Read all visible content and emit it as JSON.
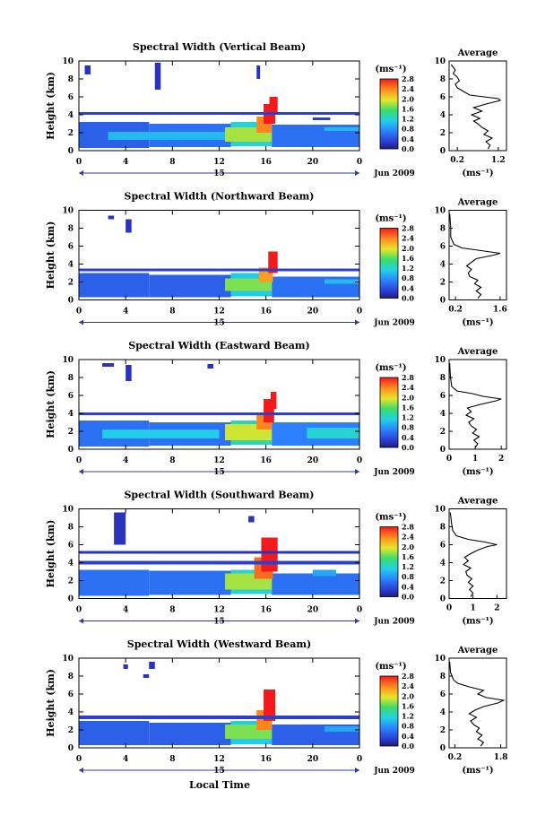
{
  "figure": {
    "ylabel": "Height (km)",
    "xlabel": "Local Time",
    "date_label": "Jun 2009",
    "day_label": "15",
    "units_label": "(ms⁻¹)",
    "profile_title": "Average",
    "profile_xlabel": "(ms⁻¹)"
  },
  "chart_data": [
    {
      "type": "heatmap",
      "title": "Spectral Width (Vertical Beam)",
      "x_ticks": [
        "0",
        "4",
        "8",
        "12",
        "16",
        "20",
        "0"
      ],
      "y_ticks": [
        "0",
        "2",
        "4",
        "6",
        "8",
        "10"
      ],
      "xlim": [
        0,
        24
      ],
      "ylim": [
        0,
        10
      ],
      "colorbar": {
        "ticks": [
          "2.8",
          "2.4",
          "2.0",
          "1.6",
          "1.2",
          "0.8",
          "0.4",
          "0.0"
        ],
        "range": [
          0,
          2.8
        ]
      },
      "cells": [
        {
          "t0": 0,
          "t1": 6,
          "h0": 0.3,
          "h1": 3.2,
          "v": 0.5
        },
        {
          "t0": 6,
          "t1": 13,
          "h0": 0.4,
          "h1": 3.0,
          "v": 0.6
        },
        {
          "t0": 13,
          "t1": 16.5,
          "h0": 0.5,
          "h1": 3.2,
          "v": 1.2
        },
        {
          "t0": 16.5,
          "t1": 24,
          "h0": 0.4,
          "h1": 2.9,
          "v": 0.6
        },
        {
          "t0": 2.5,
          "t1": 13,
          "h0": 1.2,
          "h1": 2.1,
          "v": 1.0
        },
        {
          "t0": 12.5,
          "t1": 16.5,
          "h0": 1.0,
          "h1": 2.6,
          "v": 1.8
        },
        {
          "t0": 15.2,
          "t1": 16.5,
          "h0": 2.0,
          "h1": 3.8,
          "v": 2.4
        },
        {
          "t0": 15.8,
          "t1": 16.8,
          "h0": 3.0,
          "h1": 5.2,
          "v": 2.8
        },
        {
          "t0": 16.3,
          "t1": 17.0,
          "h0": 4.2,
          "h1": 6.0,
          "v": 2.8
        },
        {
          "t0": 0,
          "t1": 24,
          "h0": 4.0,
          "h1": 4.3,
          "v": 0.3
        },
        {
          "t0": 0.5,
          "t1": 1.0,
          "h0": 8.5,
          "h1": 9.5,
          "v": 0.2
        },
        {
          "t0": 6.5,
          "t1": 7.0,
          "h0": 6.8,
          "h1": 9.8,
          "v": 0.2
        },
        {
          "t0": 15.2,
          "t1": 15.5,
          "h0": 8.0,
          "h1": 9.5,
          "v": 0.2
        },
        {
          "t0": 20,
          "t1": 21.5,
          "h0": 3.4,
          "h1": 3.7,
          "v": 0.3
        },
        {
          "t0": 21,
          "t1": 24,
          "h0": 2.2,
          "h1": 2.6,
          "v": 1.0
        }
      ],
      "profile": {
        "x_ticks": [
          "0.2",
          "1.2"
        ],
        "xlim": [
          0,
          1.4
        ],
        "ylim": [
          0,
          10
        ],
        "points": [
          [
            0.95,
            0.2
          ],
          [
            1.0,
            0.6
          ],
          [
            0.9,
            1.0
          ],
          [
            1.05,
            1.4
          ],
          [
            0.85,
            1.8
          ],
          [
            0.95,
            2.2
          ],
          [
            0.8,
            2.6
          ],
          [
            0.7,
            3.0
          ],
          [
            0.6,
            3.3
          ],
          [
            0.75,
            3.6
          ],
          [
            0.55,
            4.0
          ],
          [
            0.8,
            4.4
          ],
          [
            0.6,
            4.8
          ],
          [
            0.9,
            5.2
          ],
          [
            1.25,
            5.6
          ],
          [
            1.2,
            5.8
          ],
          [
            0.5,
            6.2
          ],
          [
            0.35,
            6.6
          ],
          [
            0.2,
            7.0
          ],
          [
            0.15,
            7.4
          ],
          [
            0.25,
            7.8
          ],
          [
            0.2,
            8.2
          ],
          [
            0.1,
            8.6
          ],
          [
            0.15,
            9.0
          ],
          [
            0.05,
            9.6
          ]
        ]
      }
    },
    {
      "type": "heatmap",
      "title": "Spectral Width (Northward Beam)",
      "x_ticks": [
        "0",
        "4",
        "8",
        "12",
        "16",
        "20",
        "0"
      ],
      "y_ticks": [
        "0",
        "2",
        "4",
        "6",
        "8",
        "10"
      ],
      "xlim": [
        0,
        24
      ],
      "ylim": [
        0,
        10
      ],
      "colorbar": {
        "ticks": [
          "2.8",
          "2.4",
          "2.0",
          "1.6",
          "1.2",
          "0.8",
          "0.4",
          "0.0"
        ],
        "range": [
          0,
          2.8
        ]
      },
      "cells": [
        {
          "t0": 0,
          "t1": 6,
          "h0": 0.3,
          "h1": 3.0,
          "v": 0.5
        },
        {
          "t0": 6,
          "t1": 13,
          "h0": 0.3,
          "h1": 2.8,
          "v": 0.5
        },
        {
          "t0": 13,
          "t1": 16.5,
          "h0": 0.4,
          "h1": 3.0,
          "v": 1.1
        },
        {
          "t0": 16.5,
          "t1": 24,
          "h0": 0.3,
          "h1": 2.6,
          "v": 0.6
        },
        {
          "t0": 12.5,
          "t1": 16.5,
          "h0": 1.0,
          "h1": 2.4,
          "v": 1.7
        },
        {
          "t0": 15.4,
          "t1": 16.6,
          "h0": 2.0,
          "h1": 3.6,
          "v": 2.3
        },
        {
          "t0": 16.2,
          "t1": 17.0,
          "h0": 3.0,
          "h1": 5.4,
          "v": 2.8
        },
        {
          "t0": 0,
          "t1": 24,
          "h0": 3.2,
          "h1": 3.5,
          "v": 0.3
        },
        {
          "t0": 4,
          "t1": 4.5,
          "h0": 7.5,
          "h1": 9.0,
          "v": 0.2
        },
        {
          "t0": 2.5,
          "t1": 3.0,
          "h0": 9.0,
          "h1": 9.4,
          "v": 0.2
        },
        {
          "t0": 21,
          "t1": 24,
          "h0": 1.8,
          "h1": 2.3,
          "v": 1.0
        }
      ],
      "profile": {
        "x_ticks": [
          "0.2",
          "1.6"
        ],
        "xlim": [
          0,
          1.8
        ],
        "ylim": [
          0,
          10
        ],
        "points": [
          [
            0.9,
            0.2
          ],
          [
            1.0,
            0.6
          ],
          [
            0.85,
            1.0
          ],
          [
            1.0,
            1.4
          ],
          [
            0.8,
            1.8
          ],
          [
            0.9,
            2.2
          ],
          [
            0.65,
            2.6
          ],
          [
            0.6,
            3.0
          ],
          [
            0.7,
            3.4
          ],
          [
            0.55,
            3.8
          ],
          [
            0.7,
            4.2
          ],
          [
            0.85,
            4.6
          ],
          [
            1.4,
            5.0
          ],
          [
            1.6,
            5.2
          ],
          [
            1.0,
            5.5
          ],
          [
            0.4,
            5.8
          ],
          [
            0.15,
            6.2
          ],
          [
            0.05,
            7.0
          ],
          [
            0.05,
            8.0
          ],
          [
            0.02,
            9.6
          ]
        ]
      }
    },
    {
      "type": "heatmap",
      "title": "Spectral Width (Eastward Beam)",
      "x_ticks": [
        "0",
        "4",
        "8",
        "12",
        "16",
        "20",
        "0"
      ],
      "y_ticks": [
        "0",
        "2",
        "4",
        "6",
        "8",
        "10"
      ],
      "xlim": [
        0,
        24
      ],
      "ylim": [
        0,
        10
      ],
      "colorbar": {
        "ticks": [
          "2.8",
          "2.4",
          "2.0",
          "1.6",
          "1.2",
          "0.8",
          "0.4",
          "0.0"
        ],
        "range": [
          0,
          2.8
        ]
      },
      "cells": [
        {
          "t0": 0,
          "t1": 6,
          "h0": 0.3,
          "h1": 3.2,
          "v": 0.6
        },
        {
          "t0": 6,
          "t1": 13,
          "h0": 0.4,
          "h1": 3.0,
          "v": 0.6
        },
        {
          "t0": 13,
          "t1": 16.5,
          "h0": 0.5,
          "h1": 3.2,
          "v": 1.3
        },
        {
          "t0": 16.5,
          "t1": 24,
          "h0": 0.4,
          "h1": 3.0,
          "v": 0.7
        },
        {
          "t0": 2.0,
          "t1": 12,
          "h0": 1.2,
          "h1": 2.2,
          "v": 1.1
        },
        {
          "t0": 12.5,
          "t1": 16.5,
          "h0": 1.0,
          "h1": 2.8,
          "v": 1.9
        },
        {
          "t0": 15.2,
          "t1": 16.5,
          "h0": 2.2,
          "h1": 4.0,
          "v": 2.4
        },
        {
          "t0": 15.8,
          "t1": 16.7,
          "h0": 3.0,
          "h1": 5.6,
          "v": 2.8
        },
        {
          "t0": 16.4,
          "t1": 16.9,
          "h0": 4.5,
          "h1": 6.4,
          "v": 2.8
        },
        {
          "t0": 0,
          "t1": 24,
          "h0": 3.8,
          "h1": 4.1,
          "v": 0.3
        },
        {
          "t0": 2.0,
          "t1": 3.0,
          "h0": 9.2,
          "h1": 9.6,
          "v": 0.2
        },
        {
          "t0": 4.0,
          "t1": 4.5,
          "h0": 7.6,
          "h1": 9.4,
          "v": 0.2
        },
        {
          "t0": 11.0,
          "t1": 11.5,
          "h0": 9.0,
          "h1": 9.5,
          "v": 0.2
        },
        {
          "t0": 19.5,
          "t1": 24,
          "h0": 1.2,
          "h1": 2.4,
          "v": 1.2
        }
      ],
      "profile": {
        "x_ticks": [
          "0",
          "1",
          "2"
        ],
        "xlim": [
          0,
          2.2
        ],
        "ylim": [
          0,
          10
        ],
        "points": [
          [
            1.0,
            0.2
          ],
          [
            1.1,
            0.6
          ],
          [
            0.95,
            1.0
          ],
          [
            1.15,
            1.4
          ],
          [
            0.9,
            1.8
          ],
          [
            1.05,
            2.2
          ],
          [
            0.85,
            2.6
          ],
          [
            0.75,
            3.0
          ],
          [
            0.95,
            3.4
          ],
          [
            0.65,
            3.8
          ],
          [
            0.85,
            4.2
          ],
          [
            0.7,
            4.6
          ],
          [
            1.2,
            5.0
          ],
          [
            1.8,
            5.4
          ],
          [
            2.0,
            5.6
          ],
          [
            1.3,
            5.9
          ],
          [
            0.9,
            6.2
          ],
          [
            0.3,
            6.5
          ],
          [
            0.1,
            7.0
          ],
          [
            0.05,
            8.0
          ],
          [
            0.02,
            9.6
          ]
        ]
      }
    },
    {
      "type": "heatmap",
      "title": "Spectral Width (Southward Beam)",
      "x_ticks": [
        "0",
        "4",
        "8",
        "12",
        "16",
        "20",
        "0"
      ],
      "y_ticks": [
        "0",
        "2",
        "4",
        "6",
        "8",
        "10"
      ],
      "xlim": [
        0,
        24
      ],
      "ylim": [
        0,
        10
      ],
      "colorbar": {
        "ticks": [
          "2.8",
          "2.4",
          "2.0",
          "1.6",
          "1.2",
          "0.8",
          "0.4",
          "0.0"
        ],
        "range": [
          0,
          2.8
        ]
      },
      "cells": [
        {
          "t0": 0,
          "t1": 6,
          "h0": 0.3,
          "h1": 3.2,
          "v": 0.6
        },
        {
          "t0": 6,
          "t1": 13,
          "h0": 0.4,
          "h1": 3.1,
          "v": 0.6
        },
        {
          "t0": 13,
          "t1": 16.5,
          "h0": 0.5,
          "h1": 3.2,
          "v": 1.2
        },
        {
          "t0": 16.5,
          "t1": 24,
          "h0": 0.4,
          "h1": 2.8,
          "v": 0.6
        },
        {
          "t0": 12.5,
          "t1": 16.5,
          "h0": 1.0,
          "h1": 2.8,
          "v": 1.8
        },
        {
          "t0": 15.0,
          "t1": 16.6,
          "h0": 2.2,
          "h1": 4.6,
          "v": 2.5
        },
        {
          "t0": 15.6,
          "t1": 17.0,
          "h0": 3.0,
          "h1": 6.8,
          "v": 2.8
        },
        {
          "t0": 0,
          "t1": 24,
          "h0": 3.8,
          "h1": 4.2,
          "v": 0.3
        },
        {
          "t0": 0,
          "t1": 24,
          "h0": 5.0,
          "h1": 5.3,
          "v": 0.2
        },
        {
          "t0": 3.0,
          "t1": 4.0,
          "h0": 6.0,
          "h1": 9.6,
          "v": 0.2
        },
        {
          "t0": 14.5,
          "t1": 15.0,
          "h0": 8.5,
          "h1": 9.2,
          "v": 0.2
        },
        {
          "t0": 20,
          "t1": 22,
          "h0": 2.5,
          "h1": 3.2,
          "v": 0.9
        }
      ],
      "profile": {
        "x_ticks": [
          "0",
          "1",
          "2"
        ],
        "xlim": [
          0,
          2.4
        ],
        "ylim": [
          0,
          10
        ],
        "points": [
          [
            0.9,
            0.2
          ],
          [
            1.0,
            0.6
          ],
          [
            0.85,
            1.0
          ],
          [
            1.0,
            1.4
          ],
          [
            0.8,
            1.8
          ],
          [
            0.95,
            2.2
          ],
          [
            0.75,
            2.6
          ],
          [
            0.7,
            3.0
          ],
          [
            0.9,
            3.4
          ],
          [
            0.6,
            3.8
          ],
          [
            0.8,
            4.2
          ],
          [
            0.65,
            4.6
          ],
          [
            0.9,
            5.0
          ],
          [
            1.2,
            5.4
          ],
          [
            1.6,
            5.8
          ],
          [
            2.0,
            6.0
          ],
          [
            1.5,
            6.3
          ],
          [
            0.8,
            6.6
          ],
          [
            0.3,
            7.0
          ],
          [
            0.15,
            7.6
          ],
          [
            0.1,
            8.4
          ],
          [
            0.05,
            9.6
          ]
        ]
      }
    },
    {
      "type": "heatmap",
      "title": "Spectral Width (Westward Beam)",
      "x_ticks": [
        "0",
        "4",
        "8",
        "12",
        "16",
        "20",
        "0"
      ],
      "y_ticks": [
        "0",
        "2",
        "4",
        "6",
        "8",
        "10"
      ],
      "xlim": [
        0,
        24
      ],
      "ylim": [
        0,
        10
      ],
      "colorbar": {
        "ticks": [
          "2.8",
          "2.4",
          "2.0",
          "1.6",
          "1.2",
          "0.8",
          "0.4",
          "0.0"
        ],
        "range": [
          0,
          2.8
        ]
      },
      "cells": [
        {
          "t0": 0,
          "t1": 6,
          "h0": 0.3,
          "h1": 3.0,
          "v": 0.5
        },
        {
          "t0": 6,
          "t1": 13,
          "h0": 0.3,
          "h1": 2.8,
          "v": 0.5
        },
        {
          "t0": 13,
          "t1": 16.5,
          "h0": 0.4,
          "h1": 3.0,
          "v": 1.1
        },
        {
          "t0": 16.5,
          "t1": 24,
          "h0": 0.3,
          "h1": 2.6,
          "v": 0.5
        },
        {
          "t0": 12.5,
          "t1": 16.5,
          "h0": 1.0,
          "h1": 2.6,
          "v": 1.7
        },
        {
          "t0": 15.2,
          "t1": 16.5,
          "h0": 2.0,
          "h1": 4.2,
          "v": 2.4
        },
        {
          "t0": 15.8,
          "t1": 16.8,
          "h0": 3.0,
          "h1": 6.5,
          "v": 2.8
        },
        {
          "t0": 0,
          "t1": 24,
          "h0": 3.2,
          "h1": 3.6,
          "v": 0.3
        },
        {
          "t0": 3.8,
          "t1": 4.2,
          "h0": 8.8,
          "h1": 9.3,
          "v": 0.2
        },
        {
          "t0": 6.0,
          "t1": 6.5,
          "h0": 8.8,
          "h1": 9.6,
          "v": 0.2
        },
        {
          "t0": 5.5,
          "t1": 6.0,
          "h0": 7.8,
          "h1": 8.2,
          "v": 0.2
        },
        {
          "t0": 21,
          "t1": 24,
          "h0": 1.8,
          "h1": 2.4,
          "v": 0.9
        }
      ],
      "profile": {
        "x_ticks": [
          "0.2",
          "1.8"
        ],
        "xlim": [
          0,
          2.0
        ],
        "ylim": [
          0,
          10
        ],
        "points": [
          [
            1.1,
            0.2
          ],
          [
            1.2,
            0.6
          ],
          [
            1.0,
            1.0
          ],
          [
            1.15,
            1.4
          ],
          [
            0.95,
            1.8
          ],
          [
            1.05,
            2.2
          ],
          [
            0.85,
            2.6
          ],
          [
            0.75,
            3.0
          ],
          [
            0.95,
            3.4
          ],
          [
            0.7,
            3.8
          ],
          [
            0.9,
            4.2
          ],
          [
            1.2,
            4.6
          ],
          [
            1.7,
            5.0
          ],
          [
            1.9,
            5.3
          ],
          [
            1.3,
            5.6
          ],
          [
            1.0,
            6.0
          ],
          [
            1.2,
            6.4
          ],
          [
            0.7,
            6.8
          ],
          [
            0.3,
            7.2
          ],
          [
            0.15,
            7.6
          ],
          [
            0.05,
            8.4
          ],
          [
            0.02,
            9.6
          ]
        ]
      }
    }
  ]
}
